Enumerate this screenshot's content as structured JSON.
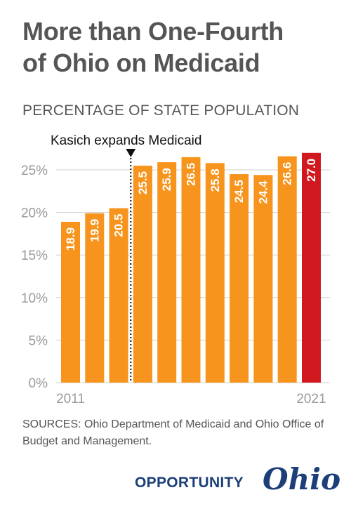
{
  "title_line1": "More than One-Fourth",
  "title_line2": "of Ohio on Medicaid",
  "subtitle": "PERCENTAGE OF STATE POPULATION",
  "sources": "SOURCES: Ohio Department of Medicaid and Ohio Office of Budget and Management.",
  "brand": {
    "word": "OPPORTUNITY",
    "script": "Ohio",
    "color": "#1c3f7a"
  },
  "chart_data": {
    "type": "bar",
    "title": "",
    "xlabel": "",
    "ylabel": "",
    "x": [
      2011,
      2012,
      2013,
      2014,
      2015,
      2016,
      2017,
      2018,
      2019,
      2020,
      2021
    ],
    "x_tick_labels": [
      "2011",
      "",
      "",
      "",
      "",
      "",
      "",
      "",
      "",
      "",
      "2021"
    ],
    "values": [
      18.9,
      19.9,
      20.5,
      25.5,
      25.9,
      26.5,
      25.8,
      24.5,
      24.4,
      26.6,
      27.0
    ],
    "value_labels": [
      "18.9",
      "19.9",
      "20.5",
      "25.5",
      "25.9",
      "26.5",
      "25.8",
      "24.5",
      "24.4",
      "26.6",
      "27.0"
    ],
    "ylim": [
      0,
      27
    ],
    "y_ticks": [
      0,
      5,
      10,
      15,
      20,
      25
    ],
    "y_tick_labels": [
      "0%",
      "5%",
      "10%",
      "15%",
      "20%",
      "25%"
    ],
    "grid": true,
    "annotation": {
      "text": "Kasich expands Medicaid",
      "between": [
        2013,
        2014
      ]
    },
    "colors": {
      "bar": "#f7941d",
      "highlight": "#d0191f",
      "grid": "#cfcfcf",
      "label": "#ffffff"
    },
    "highlight_index": 10
  }
}
